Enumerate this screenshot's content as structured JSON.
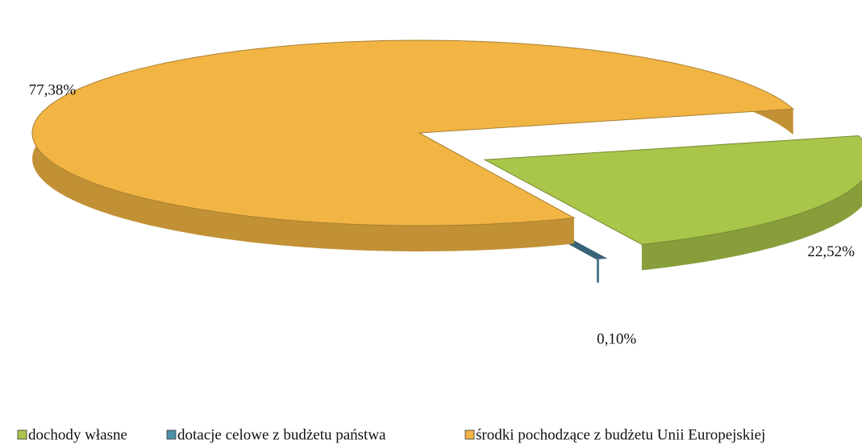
{
  "chart_data": {
    "type": "pie",
    "categories": [
      "dochody własne",
      "dotacje celowe z budżetu państwa",
      "środki pochodzące z budżetu Unii Europejskiej"
    ],
    "values": [
      22.52,
      0.1,
      77.38
    ],
    "value_labels": [
      "22,52%",
      "0,10%",
      "77,38%"
    ],
    "colors": [
      "#a9c54a",
      "#4f8fa8",
      "#f2b544"
    ],
    "legend": "bottom"
  }
}
